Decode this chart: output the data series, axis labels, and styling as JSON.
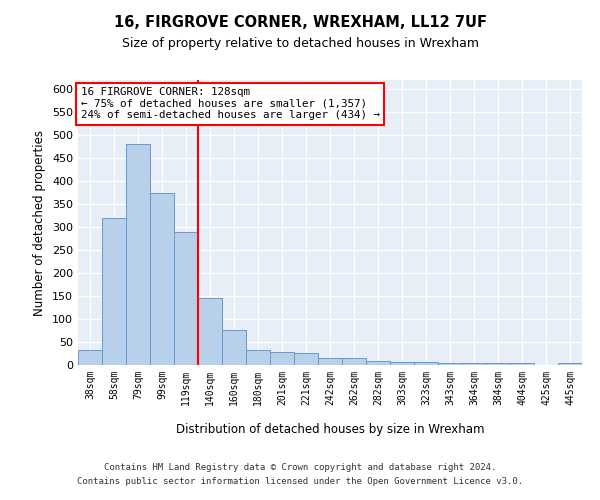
{
  "title1": "16, FIRGROVE CORNER, WREXHAM, LL12 7UF",
  "title2": "Size of property relative to detached houses in Wrexham",
  "xlabel": "Distribution of detached houses by size in Wrexham",
  "ylabel": "Number of detached properties",
  "categories": [
    "38sqm",
    "58sqm",
    "79sqm",
    "99sqm",
    "119sqm",
    "140sqm",
    "160sqm",
    "180sqm",
    "201sqm",
    "221sqm",
    "242sqm",
    "262sqm",
    "282sqm",
    "303sqm",
    "323sqm",
    "343sqm",
    "364sqm",
    "384sqm",
    "404sqm",
    "425sqm",
    "445sqm"
  ],
  "values": [
    32,
    320,
    480,
    375,
    290,
    145,
    76,
    32,
    29,
    27,
    16,
    16,
    9,
    6,
    6,
    5,
    5,
    5,
    5,
    1,
    5
  ],
  "bar_color": "#b8d0ea",
  "bar_edge_color": "#6699cc",
  "vline_color": "red",
  "vline_pos": 4.5,
  "annotation_line1": "16 FIRGROVE CORNER: 128sqm",
  "annotation_line2": "← 75% of detached houses are smaller (1,357)",
  "annotation_line3": "24% of semi-detached houses are larger (434) →",
  "ylim_max": 620,
  "yticks": [
    0,
    50,
    100,
    150,
    200,
    250,
    300,
    350,
    400,
    450,
    500,
    550,
    600
  ],
  "footer1": "Contains HM Land Registry data © Crown copyright and database right 2024.",
  "footer2": "Contains public sector information licensed under the Open Government Licence v3.0.",
  "bg_color": "#e8eef8",
  "grid_color": "white",
  "title1_fontsize": 10.5,
  "title2_fontsize": 9
}
